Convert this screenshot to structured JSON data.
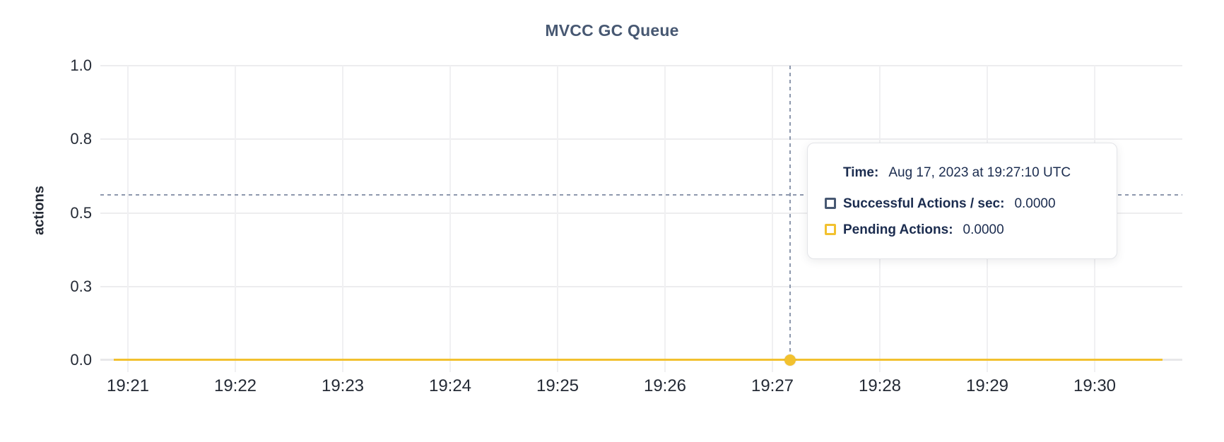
{
  "chart_data": {
    "type": "line",
    "title": "MVCC GC Queue",
    "ylabel": "actions",
    "ylim": [
      0,
      1.0
    ],
    "grid": true,
    "y_ticks": [
      {
        "value": 0.0,
        "label": "0.0"
      },
      {
        "value": 0.25,
        "label": "0.3"
      },
      {
        "value": 0.5,
        "label": "0.5"
      },
      {
        "value": 0.75,
        "label": "0.8"
      },
      {
        "value": 1.0,
        "label": "1.0"
      }
    ],
    "x_ticks": [
      "19:21",
      "19:22",
      "19:23",
      "19:24",
      "19:25",
      "19:26",
      "19:27",
      "19:28",
      "19:29",
      "19:30"
    ],
    "series": [
      {
        "name": "Successful Actions / sec",
        "color": "#475872",
        "x_start": "19:20:52",
        "x_end": "19:30:38",
        "constant_value": 0.0
      },
      {
        "name": "Pending Actions",
        "color": "#F2C12F",
        "x_start": "19:20:52",
        "x_end": "19:30:38",
        "constant_value": 0.0
      }
    ],
    "hover": {
      "time": "19:27:10",
      "cursor_value": 0.56,
      "dot_series": "Pending Actions",
      "dot_value": 0.0
    }
  },
  "tooltip": {
    "time_label": "Time:",
    "time_value": "Aug 17, 2023 at 19:27:10 UTC",
    "rows": [
      {
        "label": "Successful Actions / sec:",
        "value": "0.0000",
        "color": "#475872"
      },
      {
        "label": "Pending Actions:",
        "value": "0.0000",
        "color": "#F2C12F"
      }
    ]
  },
  "colors": {
    "title": "#475872",
    "text_navy": "#1b2c4f",
    "axis_text": "#242a35",
    "gridline": "#ededef",
    "crosshair": "#8d98ad",
    "series_slate": "#475872",
    "series_yellow": "#F2C12F"
  }
}
